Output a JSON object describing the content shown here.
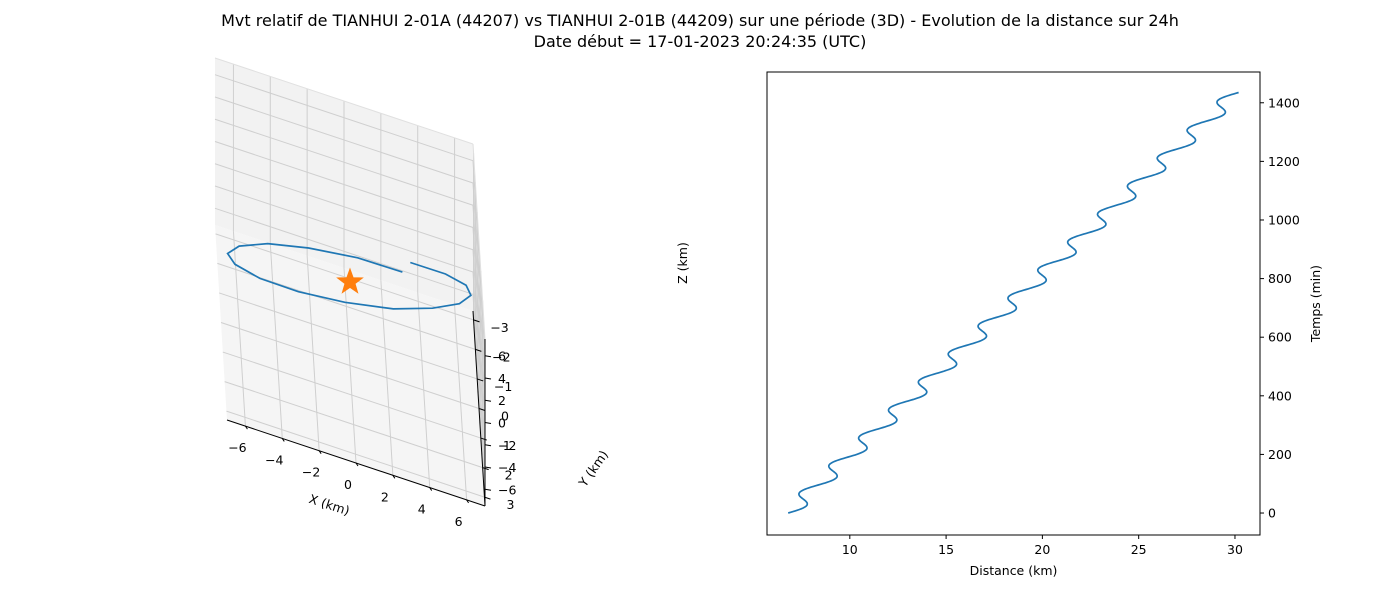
{
  "figure": {
    "title_line1": "Mvt relatif de TIANHUI 2-01A (44207) vs TIANHUI 2-01B (44209) sur une période (3D) - Evolution de la distance sur 24h",
    "title_line2": "Date début = 17-01-2023 20:24:35 (UTC)"
  },
  "chart_data": [
    {
      "type": "line3d",
      "xlabel": "X (km)",
      "ylabel": "Y (km)",
      "zlabel": "Z (km)",
      "xlim": [
        -7,
        7
      ],
      "ylim": [
        -3.3,
        3.3
      ],
      "zlim": [
        -7.5,
        7.5
      ],
      "xticks": [
        "−6",
        "−4",
        "−2",
        "0",
        "2",
        "4",
        "6"
      ],
      "yticks": [
        "−3",
        "−2",
        "−1",
        "0",
        "1",
        "2",
        "3"
      ],
      "zticks": [
        "−6",
        "−4",
        "−2",
        "0",
        "2",
        "4",
        "6"
      ],
      "grid": true,
      "line_color": "#1f77b4",
      "marker": {
        "symbol": "star",
        "color": "#ff7f0e",
        "x": 0,
        "y": 0,
        "z": 0
      },
      "series": [
        {
          "x": [
            3.58,
            5.43,
            6.45,
            6.59,
            5.84,
            4.27,
            2.06,
            -0.6,
            -3.11,
            -5.14,
            -6.39,
            -6.67,
            -5.92,
            -4.26,
            -1.96,
            0.74,
            3.15
          ],
          "y": [
            -3.1,
            -2.53,
            -1.53,
            -0.28,
            0.99,
            2.11,
            2.93,
            3.3,
            3.16,
            2.53,
            1.52,
            0.27,
            -1.0,
            -2.11,
            -2.89,
            -3.27,
            -3.1
          ],
          "z": [
            -4.5,
            -3.0,
            -0.8,
            1.7,
            3.9,
            5.6,
            6.5,
            6.6,
            5.8,
            4.2,
            2.1,
            -0.4,
            -2.7,
            -4.5,
            -5.7,
            -6.1,
            -5.6
          ]
        }
      ]
    },
    {
      "type": "line",
      "xlabel": "Distance (km)",
      "ylabel": "Temps (min)",
      "xlim": [
        5.7,
        31.3
      ],
      "ylim": [
        -75,
        1505
      ],
      "xticks": [
        10,
        15,
        20,
        25,
        30
      ],
      "yticks": [
        0,
        200,
        400,
        600,
        800,
        1000,
        1200,
        1400
      ],
      "yaxis_position": "right",
      "grid": false,
      "line_color": "#1f77b4",
      "series": [
        {
          "distance_start": 6.8,
          "distance_end": 30.1,
          "time_end": 1435,
          "oscillation_period_min": 95.5,
          "oscillation_amplitude_km": 0.55
        }
      ]
    }
  ]
}
